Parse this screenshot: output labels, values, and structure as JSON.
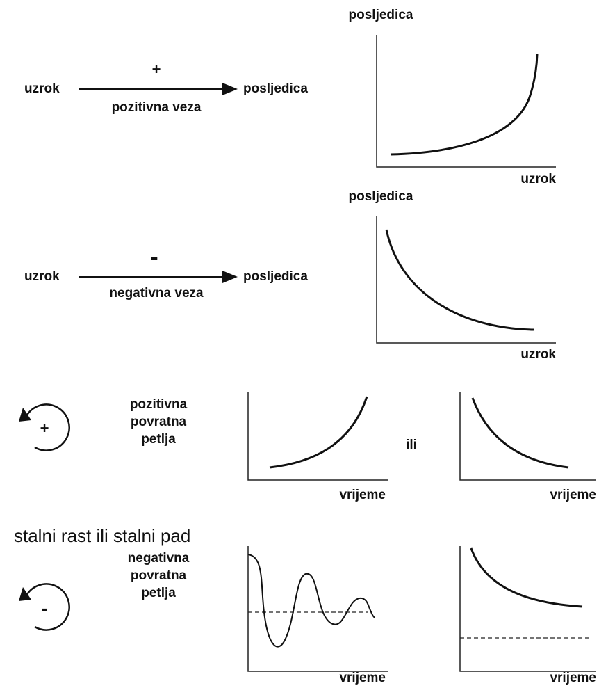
{
  "positive_link": {
    "cause": "uzrok",
    "sign": "+",
    "label": "pozitivna veza",
    "effect": "posljedica",
    "chart": {
      "y_label": "posljedica",
      "x_label": "uzrok"
    }
  },
  "negative_link": {
    "cause": "uzrok",
    "sign": "-",
    "label": "negativna veza",
    "effect": "posljedica",
    "chart": {
      "y_label": "posljedica",
      "x_label": "uzrok"
    }
  },
  "positive_loop": {
    "sign": "+",
    "label": [
      "pozitivna",
      "povratna",
      "petlja"
    ],
    "connector": "ili",
    "charts": [
      {
        "x_label": "vrijeme"
      },
      {
        "x_label": "vrijeme"
      }
    ]
  },
  "caption": "stalni rast ili stalni pad",
  "negative_loop": {
    "sign": "-",
    "label": [
      "negativna",
      "povratna",
      "petlja"
    ],
    "charts": [
      {
        "x_label": "vrijeme"
      },
      {
        "x_label": "vrijeme"
      }
    ]
  }
}
